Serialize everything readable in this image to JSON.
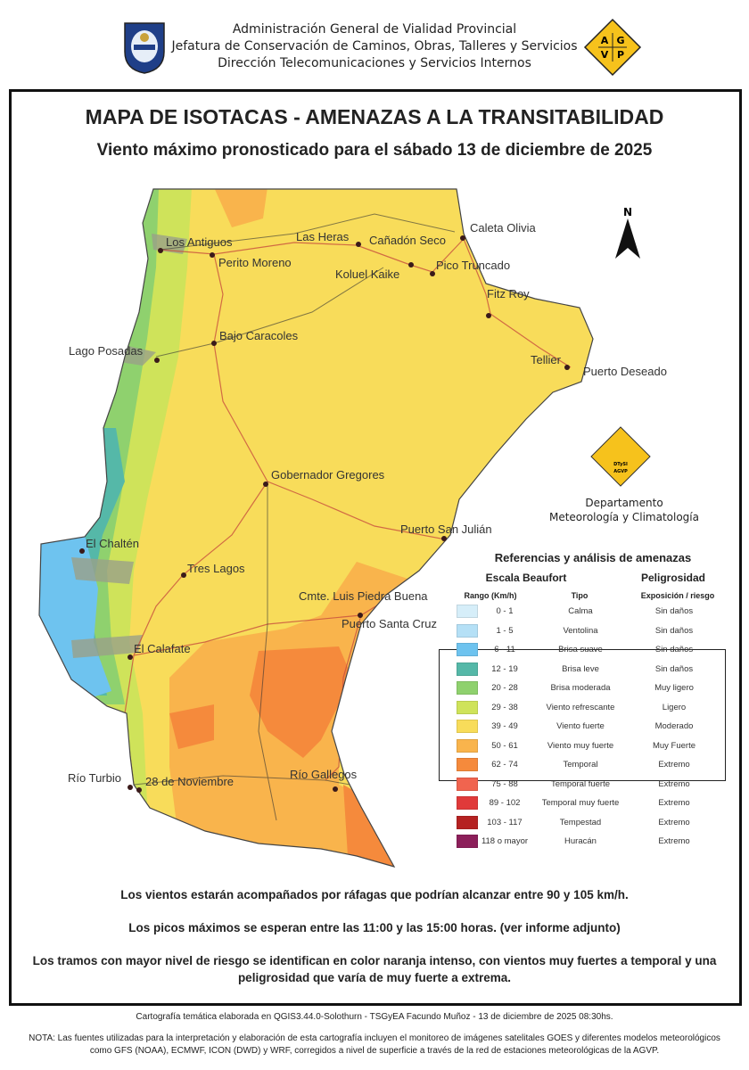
{
  "header": {
    "lines": [
      "Administración General de Vialidad Provincial",
      "Jefatura de Conservación de Caminos, Obras, Talleres y Servicios",
      "Dirección Telecomunicaciones y Servicios Internos"
    ],
    "logo_right_letters": [
      "A",
      "G",
      "V",
      "P"
    ]
  },
  "title": "MAPA DE ISOTACAS - AMENAZAS A LA TRANSITABILIDAD",
  "subtitle": "Viento máximo pronosticado para el sábado 13 de diciembre de 2025",
  "map": {
    "north_label": "N",
    "cities": [
      "Los Antiguos",
      "Perito Moreno",
      "Las Heras",
      "Cañadón Seco",
      "Caleta Olivia",
      "Koluel Kaike",
      "Pico Truncado",
      "Fitz Roy",
      "Lago Posadas",
      "Bajo Caracoles",
      "Tellier",
      "Puerto Deseado",
      "Gobernador Gregores",
      "Puerto San Julián",
      "El Chaltén",
      "Tres Lagos",
      "Cmte. Luis Piedra Buena",
      "Puerto Santa Cruz",
      "El Calafate",
      "Río Turbio",
      "28 de Noviembre",
      "Río Gallegos"
    ]
  },
  "department": {
    "logo_text": [
      "DTySI",
      "AGVP"
    ],
    "name_line1": "Departamento",
    "name_line2": "Meteorología y Climatología"
  },
  "legend": {
    "title": "Referencias y análisis de amenazas",
    "section_beaufort": "Escala Beaufort",
    "section_danger": "Peligrosidad",
    "col_range": "Rango (Km/h)",
    "col_type": "Tipo",
    "col_risk": "Exposición / riesgo",
    "rows": [
      {
        "range": "0 - 1",
        "type": "Calma",
        "risk": "Sin daños",
        "color": "#d6eef9"
      },
      {
        "range": "1 - 5",
        "type": "Ventolina",
        "risk": "Sin daños",
        "color": "#b5e0f6"
      },
      {
        "range": "6 - 11",
        "type": "Brisa suave",
        "risk": "Sin daños",
        "color": "#6ec3ef"
      },
      {
        "range": "12 - 19",
        "type": "Brisa leve",
        "risk": "Sin daños",
        "color": "#55b8a8"
      },
      {
        "range": "20 - 28",
        "type": "Brisa moderada",
        "risk": "Muy ligero",
        "color": "#8fd16e"
      },
      {
        "range": "29 - 38",
        "type": "Viento refrescante",
        "risk": "Ligero",
        "color": "#cfe35a"
      },
      {
        "range": "39 - 49",
        "type": "Viento fuerte",
        "risk": "Moderado",
        "color": "#f8dc5a"
      },
      {
        "range": "50 - 61",
        "type": "Viento muy fuerte",
        "risk": "Muy Fuerte",
        "color": "#f9b44c"
      },
      {
        "range": "62 - 74",
        "type": "Temporal",
        "risk": "Extremo",
        "color": "#f58a3c"
      },
      {
        "range": "75 - 88",
        "type": "Temporal fuerte",
        "risk": "Extremo",
        "color": "#f0644f"
      },
      {
        "range": "89 - 102",
        "type": "Temporal muy fuerte",
        "risk": "Extremo",
        "color": "#e03a3a"
      },
      {
        "range": "103 - 117",
        "type": "Tempestad",
        "risk": "Extremo",
        "color": "#b52222"
      },
      {
        "range": "118 o mayor",
        "type": "Huracán",
        "risk": "Extremo",
        "color": "#8c1f5a"
      }
    ]
  },
  "notes": [
    "Los vientos estarán acompañados por ráfagas que podrían alcanzar entre 90 y 105 km/h.",
    "Los picos máximos se esperan entre las 11:00 y las 15:00 horas. (ver informe adjunto)",
    "Los tramos con mayor nivel de riesgo se identifican en color naranja intenso, con vientos muy fuertes a temporal y una peligrosidad que varía de muy fuerte a extrema."
  ],
  "footer": {
    "credit": "Cartografía temática elaborada en QGIS3.44.0-Solothurn - TSGyEA Facundo Muñoz - 13 de diciembre de 2025 08:30hs.",
    "note": "NOTA: Las fuentes utilizadas para la interpretación y elaboración de esta cartografía incluyen el monitoreo de imágenes satelitales GOES y diferentes modelos meteorológicos como GFS (NOAA), ECMWF, ICON (DWD) y WRF, corregidos a nivel de superficie a través de la red de estaciones meteorológicas de la AGVP."
  }
}
